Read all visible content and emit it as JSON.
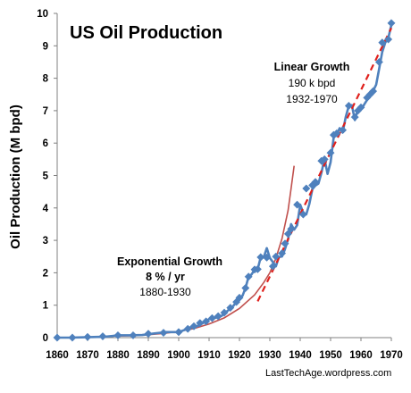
{
  "chart_data": {
    "type": "line",
    "title": "US Oil Production",
    "ylabel": "Oil Production (M bpd)",
    "xlabel": "",
    "xlim": [
      1860,
      1970
    ],
    "ylim": [
      0,
      10
    ],
    "xticks": [
      1860,
      1870,
      1880,
      1890,
      1900,
      1910,
      1920,
      1930,
      1940,
      1950,
      1960,
      1970
    ],
    "yticks": [
      0,
      1,
      2,
      3,
      4,
      5,
      6,
      7,
      8,
      9,
      10
    ],
    "grid": false,
    "colors": {
      "data": "#4f81bd",
      "exponential": "#c0504d",
      "linear": "#e0211d"
    },
    "series": [
      {
        "id": "production",
        "points": [
          [
            1860,
            0.0
          ],
          [
            1864,
            0.0
          ],
          [
            1868,
            0.01
          ],
          [
            1872,
            0.02
          ],
          [
            1876,
            0.03
          ],
          [
            1880,
            0.07
          ],
          [
            1884,
            0.07
          ],
          [
            1888,
            0.08
          ],
          [
            1892,
            0.13
          ],
          [
            1896,
            0.17
          ],
          [
            1900,
            0.17
          ],
          [
            1902,
            0.24
          ],
          [
            1904,
            0.32
          ],
          [
            1906,
            0.35
          ],
          [
            1908,
            0.45
          ],
          [
            1910,
            0.57
          ],
          [
            1912,
            0.61
          ],
          [
            1914,
            0.66
          ],
          [
            1916,
            0.82
          ],
          [
            1918,
            0.98
          ],
          [
            1920,
            1.23
          ],
          [
            1921,
            1.29
          ],
          [
            1922,
            1.53
          ],
          [
            1923,
            1.88
          ],
          [
            1924,
            1.95
          ],
          [
            1925,
            2.1
          ],
          [
            1926,
            2.11
          ],
          [
            1927,
            2.48
          ],
          [
            1928,
            2.48
          ],
          [
            1929,
            2.76
          ],
          [
            1930,
            2.46
          ],
          [
            1931,
            2.33
          ],
          [
            1932,
            2.2
          ],
          [
            1933,
            2.49
          ],
          [
            1934,
            2.5
          ],
          [
            1935,
            2.73
          ],
          [
            1936,
            3.03
          ],
          [
            1937,
            3.5
          ],
          [
            1938,
            3.33
          ],
          [
            1939,
            3.47
          ],
          [
            1940,
            4.1
          ],
          [
            1941,
            3.85
          ],
          [
            1942,
            3.8
          ],
          [
            1943,
            4.12
          ],
          [
            1944,
            4.58
          ],
          [
            1945,
            4.69
          ],
          [
            1946,
            4.75
          ],
          [
            1947,
            5.09
          ],
          [
            1948,
            5.52
          ],
          [
            1949,
            5.05
          ],
          [
            1950,
            5.41
          ],
          [
            1951,
            6.16
          ],
          [
            1952,
            6.27
          ],
          [
            1953,
            6.46
          ],
          [
            1954,
            6.34
          ],
          [
            1955,
            6.81
          ],
          [
            1956,
            7.15
          ],
          [
            1957,
            7.17
          ],
          [
            1958,
            6.71
          ],
          [
            1959,
            7.05
          ],
          [
            1960,
            7.04
          ],
          [
            1961,
            7.18
          ],
          [
            1962,
            7.33
          ],
          [
            1963,
            7.54
          ],
          [
            1964,
            7.61
          ],
          [
            1965,
            7.8
          ],
          [
            1966,
            8.3
          ],
          [
            1967,
            8.81
          ],
          [
            1968,
            9.1
          ],
          [
            1969,
            9.24
          ],
          [
            1970,
            9.64
          ]
        ],
        "markers": [
          [
            1860,
            0.0
          ],
          [
            1865,
            0.0
          ],
          [
            1870,
            0.02
          ],
          [
            1875,
            0.04
          ],
          [
            1880,
            0.07
          ],
          [
            1885,
            0.07
          ],
          [
            1890,
            0.12
          ],
          [
            1895,
            0.15
          ],
          [
            1900,
            0.17
          ],
          [
            1903,
            0.27
          ],
          [
            1905,
            0.35
          ],
          [
            1907,
            0.45
          ],
          [
            1909,
            0.5
          ],
          [
            1911,
            0.6
          ],
          [
            1913,
            0.66
          ],
          [
            1915,
            0.77
          ],
          [
            1917,
            0.92
          ],
          [
            1919,
            1.1
          ],
          [
            1920,
            1.23
          ],
          [
            1922,
            1.53
          ],
          [
            1923,
            1.88
          ],
          [
            1925,
            2.1
          ],
          [
            1926,
            2.11
          ],
          [
            1927,
            2.48
          ],
          [
            1929,
            2.47
          ],
          [
            1931,
            2.2
          ],
          [
            1932,
            2.5
          ],
          [
            1934,
            2.6
          ],
          [
            1935,
            2.9
          ],
          [
            1936,
            3.2
          ],
          [
            1937,
            3.35
          ],
          [
            1939,
            4.1
          ],
          [
            1941,
            3.8
          ],
          [
            1942,
            4.6
          ],
          [
            1944,
            4.7
          ],
          [
            1945,
            4.8
          ],
          [
            1947,
            5.45
          ],
          [
            1948,
            5.5
          ],
          [
            1950,
            5.7
          ],
          [
            1951,
            6.25
          ],
          [
            1952,
            6.3
          ],
          [
            1954,
            6.4
          ],
          [
            1956,
            7.15
          ],
          [
            1958,
            6.8
          ],
          [
            1959,
            7.0
          ],
          [
            1960,
            7.1
          ],
          [
            1962,
            7.4
          ],
          [
            1963,
            7.5
          ],
          [
            1964,
            7.6
          ],
          [
            1966,
            8.5
          ],
          [
            1967,
            9.1
          ],
          [
            1969,
            9.2
          ],
          [
            1970,
            9.7
          ]
        ]
      },
      {
        "id": "exponential-fit",
        "style": "solid",
        "range": [
          1880,
          1936
        ],
        "points": [
          [
            1880,
            0.05
          ],
          [
            1885,
            0.06
          ],
          [
            1890,
            0.09
          ],
          [
            1895,
            0.13
          ],
          [
            1900,
            0.19
          ],
          [
            1905,
            0.28
          ],
          [
            1910,
            0.42
          ],
          [
            1915,
            0.61
          ],
          [
            1920,
            0.9
          ],
          [
            1925,
            1.32
          ],
          [
            1928,
            1.7
          ],
          [
            1930,
            2.0
          ],
          [
            1932,
            2.45
          ],
          [
            1934,
            3.05
          ],
          [
            1936,
            3.92
          ],
          [
            1937,
            4.6
          ],
          [
            1938,
            5.3
          ]
        ]
      },
      {
        "id": "linear-fit",
        "style": "dashed",
        "points": [
          [
            1926,
            1.12
          ],
          [
            1970,
            9.55
          ]
        ]
      }
    ],
    "annotations": {
      "exponential": {
        "name": "Exponential Growth",
        "rate": "8 % / yr",
        "years": "1880-1930"
      },
      "linear": {
        "name": "Linear Growth",
        "rate": "190 k bpd",
        "years": "1932-1970"
      }
    },
    "credit": "LastTechAge.wordpress.com"
  }
}
